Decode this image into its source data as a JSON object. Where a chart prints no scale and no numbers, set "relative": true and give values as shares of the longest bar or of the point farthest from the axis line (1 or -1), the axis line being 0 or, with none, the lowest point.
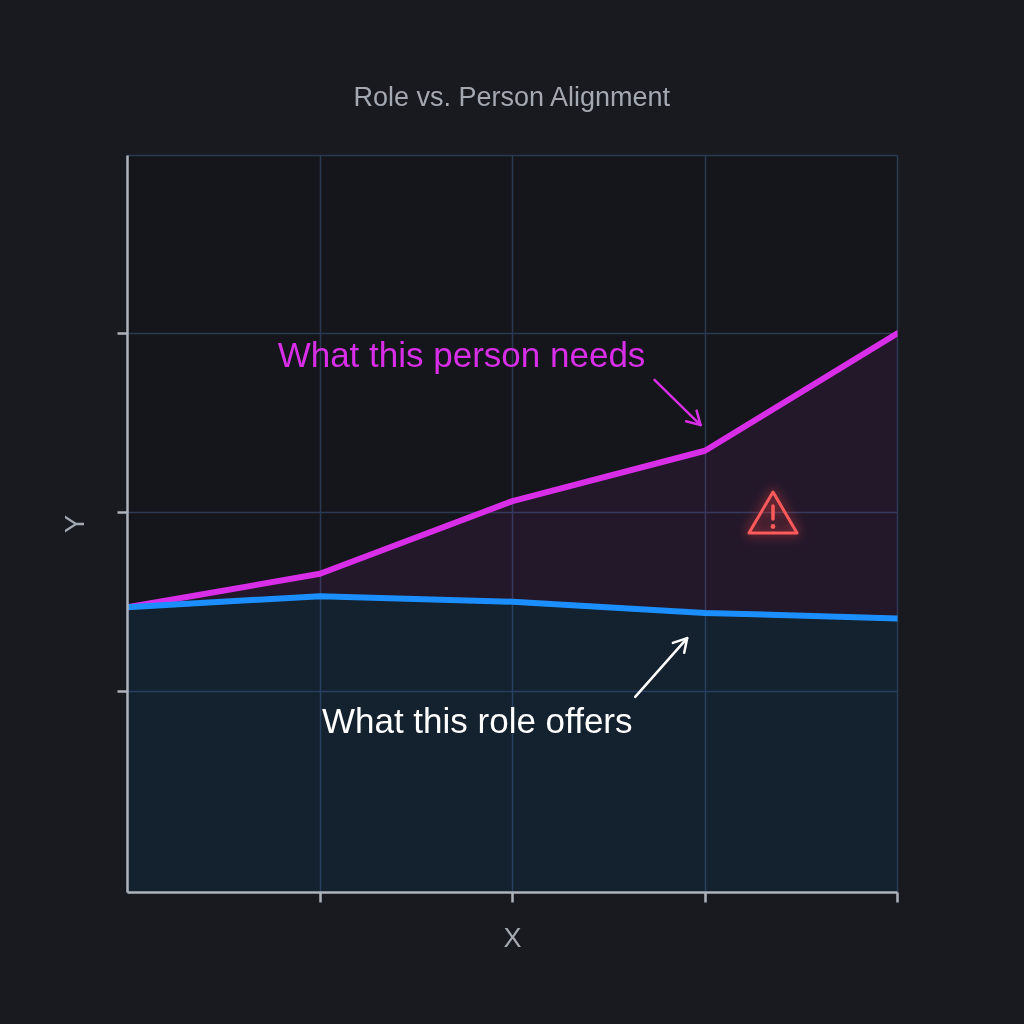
{
  "chart_data": {
    "type": "line",
    "title": "Role vs. Person Alignment",
    "xlabel": "X",
    "ylabel": "Y",
    "categories": [
      null,
      null,
      null,
      null,
      null
    ],
    "relative": true,
    "grid": true,
    "series": [
      {
        "name": "What this person needs",
        "color": "#d92ee8",
        "values": [
          0.51,
          0.57,
          0.7,
          0.79,
          1
        ],
        "lower": [
          0.51,
          0.53,
          0.52,
          0.5,
          0.49
        ],
        "upper": [
          0.51,
          0.57,
          0.7,
          0.79,
          1
        ]
      },
      {
        "name": "What this role offers",
        "type": "area",
        "color": "#1b8fff",
        "values": [
          0.51,
          0.53,
          0.52,
          0.5,
          0.49
        ]
      }
    ]
  }
}
